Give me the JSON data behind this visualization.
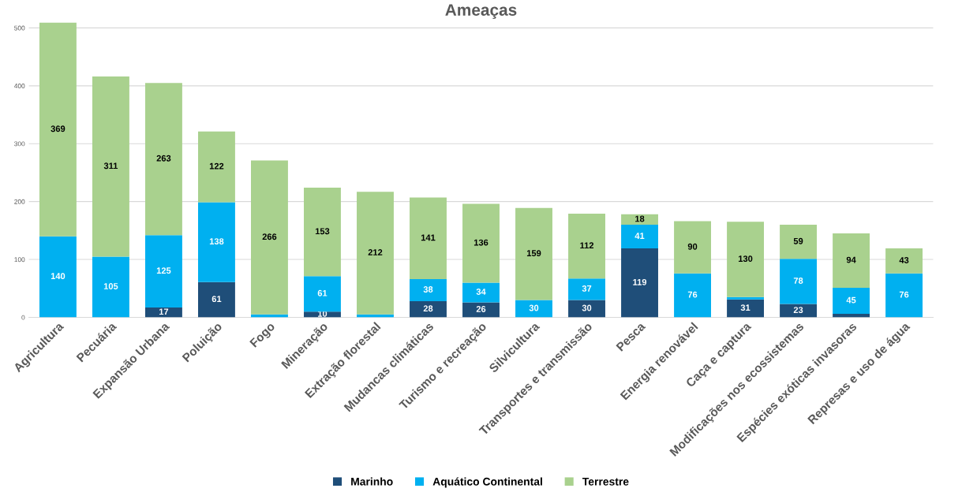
{
  "chart_data": {
    "type": "bar",
    "title": "Ameaças",
    "stacked": true,
    "categories": [
      "Agricultura",
      "Pecuária",
      "Expansão Urbana",
      "Poluição",
      "Fogo",
      "Mineração",
      "Extração florestal",
      "Mudancas climáticas",
      "Turismo e recreação",
      "Silvicultura",
      "Transportes e transmissão",
      "Pesca",
      "Energia renovável",
      "Caça e captura",
      "Modificações nos ecossistemas",
      "Espécies exóticas invasoras",
      "Represas e uso de água"
    ],
    "series": [
      {
        "name": "Marinho",
        "color": "#1f4e79",
        "values": [
          0,
          0,
          17,
          61,
          0,
          10,
          0,
          28,
          26,
          0,
          30,
          119,
          null,
          31,
          23,
          6,
          0
        ],
        "value_labels": [
          null,
          null,
          "17",
          "61",
          null,
          "10",
          null,
          "28",
          "26",
          null,
          "30",
          "119",
          null,
          "31",
          "23",
          null,
          null
        ]
      },
      {
        "name": "Aquático Continental",
        "color": "#00b0f0",
        "values": [
          140,
          105,
          125,
          138,
          5,
          61,
          5,
          38,
          34,
          30,
          37,
          41,
          76,
          4,
          78,
          45,
          76
        ],
        "value_labels": [
          "140",
          "105",
          "125",
          "138",
          null,
          "61",
          null,
          "38",
          "34",
          "30",
          "37",
          "41",
          "76",
          null,
          "78",
          "45",
          "76"
        ]
      },
      {
        "name": "Terrestre",
        "color": "#a9d18e",
        "values": [
          369,
          311,
          263,
          122,
          266,
          153,
          212,
          141,
          136,
          159,
          112,
          18,
          90,
          130,
          59,
          94,
          43
        ],
        "value_labels": [
          "369",
          "311",
          "263",
          "122",
          "266",
          "153",
          "212",
          "141",
          "136",
          "159",
          "112",
          "18",
          "90",
          "130",
          "59",
          "94",
          "43"
        ]
      }
    ],
    "ylim": [
      0,
      510
    ],
    "yticks": [
      0,
      100,
      200,
      300,
      400,
      500
    ],
    "grid": "y",
    "legend": "bottom"
  }
}
